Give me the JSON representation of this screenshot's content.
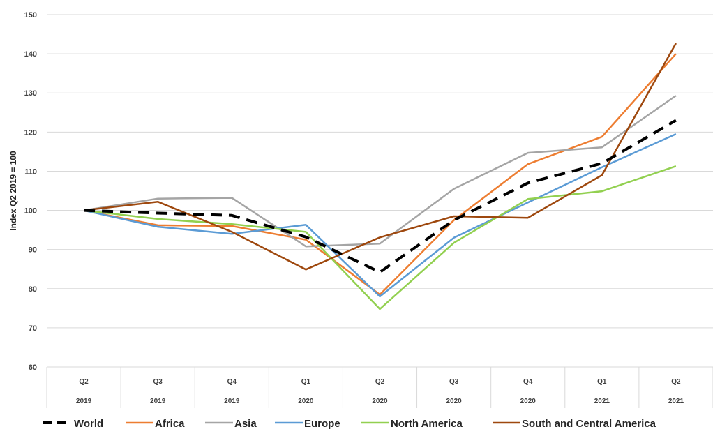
{
  "chart_data": {
    "type": "line",
    "title": "",
    "ylabel": "Index Q2 2019 = 100",
    "xlabel": "",
    "ylim": [
      60,
      150
    ],
    "yticks": [
      60,
      70,
      80,
      90,
      100,
      110,
      120,
      130,
      140,
      150
    ],
    "grid": true,
    "legend_position": "bottom",
    "categories": [
      {
        "quarter": "Q2",
        "year": "2019"
      },
      {
        "quarter": "Q3",
        "year": "2019"
      },
      {
        "quarter": "Q4",
        "year": "2019"
      },
      {
        "quarter": "Q1",
        "year": "2020"
      },
      {
        "quarter": "Q2",
        "year": "2020"
      },
      {
        "quarter": "Q3",
        "year": "2020"
      },
      {
        "quarter": "Q4",
        "year": "2020"
      },
      {
        "quarter": "Q1",
        "year": "2021"
      },
      {
        "quarter": "Q2",
        "year": "2021"
      }
    ],
    "series": [
      {
        "name": "World",
        "color": "#000000",
        "dashed": true,
        "values": [
          100,
          99.3,
          98.7,
          93.2,
          84.2,
          97.5,
          107,
          112,
          123
        ]
      },
      {
        "name": "Africa",
        "color": "#ED7D31",
        "dashed": false,
        "values": [
          100,
          96.2,
          96,
          92.5,
          78.5,
          97.5,
          111.8,
          118.8,
          140
        ]
      },
      {
        "name": "Asia",
        "color": "#A5A5A5",
        "dashed": false,
        "values": [
          100,
          103,
          103.2,
          90.8,
          91.5,
          105.5,
          114.7,
          116.1,
          129.3
        ]
      },
      {
        "name": "Europe",
        "color": "#5B9BD5",
        "dashed": false,
        "values": [
          100,
          95.8,
          94,
          96.3,
          78,
          93,
          102,
          111,
          119.5
        ]
      },
      {
        "name": "North America",
        "color": "#92D050",
        "dashed": false,
        "values": [
          100,
          97.8,
          96.5,
          94.5,
          74.8,
          91.7,
          102.9,
          104.9,
          111.3
        ]
      },
      {
        "name": "South and Central America",
        "color": "#9E480E",
        "dashed": false,
        "values": [
          100,
          102.2,
          94.5,
          84.9,
          93.1,
          98.5,
          98.1,
          109,
          142.7
        ]
      }
    ]
  }
}
